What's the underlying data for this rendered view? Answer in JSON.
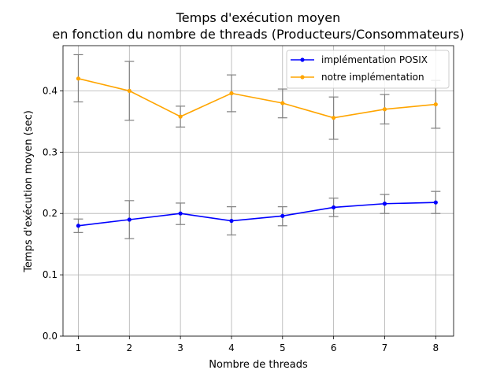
{
  "chart_data": {
    "type": "line",
    "title_line1": "Temps d'exécution moyen",
    "title_line2": "en fonction du nombre de threads (Producteurs/Consommateurs)",
    "xlabel": "Nombre de threads",
    "ylabel": "Temps d'exécution moyen (sec)",
    "x": [
      1,
      2,
      3,
      4,
      5,
      6,
      7,
      8
    ],
    "xlim": [
      0.7,
      8.35
    ],
    "ylim": [
      0.0,
      0.4737
    ],
    "yticks": [
      0.0,
      0.1,
      0.2,
      0.3,
      0.4
    ],
    "ytick_labels": [
      "0.0",
      "0.1",
      "0.2",
      "0.3",
      "0.4"
    ],
    "xtick_labels": [
      "1",
      "2",
      "3",
      "4",
      "5",
      "6",
      "7",
      "8"
    ],
    "grid": true,
    "legend_position": "top-right",
    "series": [
      {
        "name": "implémentation POSIX",
        "color": "#0000ff",
        "marker": "dot",
        "values": [
          0.18,
          0.19,
          0.2,
          0.188,
          0.196,
          0.21,
          0.216,
          0.218
        ],
        "err_low": [
          0.169,
          0.159,
          0.182,
          0.165,
          0.18,
          0.195,
          0.2,
          0.2
        ],
        "err_high": [
          0.191,
          0.221,
          0.217,
          0.211,
          0.211,
          0.225,
          0.231,
          0.236
        ]
      },
      {
        "name": "notre implémentation",
        "color": "#ffa500",
        "marker": "dot",
        "values": [
          0.42,
          0.4,
          0.358,
          0.396,
          0.38,
          0.356,
          0.37,
          0.378
        ],
        "err_low": [
          0.382,
          0.352,
          0.341,
          0.366,
          0.356,
          0.321,
          0.346,
          0.339
        ],
        "err_high": [
          0.459,
          0.448,
          0.375,
          0.426,
          0.403,
          0.39,
          0.394,
          0.417
        ]
      }
    ],
    "errorbar_color": "#808080"
  }
}
